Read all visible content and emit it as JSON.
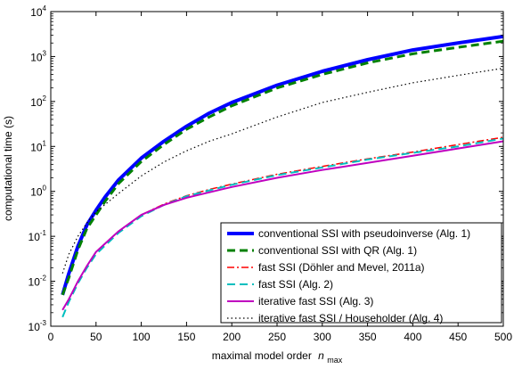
{
  "chart_data": {
    "type": "line",
    "xlabel": "maximal model order",
    "xlabel_var": "n",
    "xlabel_sub": "max",
    "ylabel": "computational time (s)",
    "xlim": [
      0,
      500
    ],
    "ylim_exponents": [
      -3,
      4
    ],
    "yscale": "log",
    "x_ticks": [
      "0",
      "50",
      "100",
      "150",
      "200",
      "250",
      "300",
      "350",
      "400",
      "450",
      "500"
    ],
    "y_ticks": [
      {
        "base": "10",
        "exp": "-3"
      },
      {
        "base": "10",
        "exp": "-2"
      },
      {
        "base": "10",
        "exp": "-1"
      },
      {
        "base": "10",
        "exp": "0"
      },
      {
        "base": "10",
        "exp": "1"
      },
      {
        "base": "10",
        "exp": "2"
      },
      {
        "base": "10",
        "exp": "3"
      },
      {
        "base": "10",
        "exp": "4"
      }
    ],
    "grid": false,
    "legend_position": "bottom-right",
    "series": [
      {
        "name": "conventional SSI with pseudoinverse (Alg. 1)",
        "color": "#0000ff",
        "style": "solid",
        "width": 4,
        "x": [
          13,
          20,
          30,
          40,
          50,
          60,
          75,
          100,
          125,
          150,
          175,
          200,
          250,
          300,
          350,
          400,
          450,
          500
        ],
        "y": [
          0.005,
          0.015,
          0.06,
          0.18,
          0.38,
          0.75,
          1.8,
          5.5,
          13,
          28,
          55,
          95,
          230,
          470,
          850,
          1400,
          2000,
          2800
        ]
      },
      {
        "name": "conventional SSI with QR (Alg. 1)",
        "color": "#008000",
        "style": "dashed",
        "width": 3,
        "x": [
          13,
          20,
          30,
          40,
          50,
          60,
          75,
          100,
          125,
          150,
          175,
          200,
          250,
          300,
          350,
          400,
          450,
          500
        ],
        "y": [
          0.005,
          0.012,
          0.05,
          0.15,
          0.3,
          0.6,
          1.5,
          4.6,
          11,
          24,
          45,
          80,
          200,
          400,
          720,
          1150,
          1600,
          2200
        ]
      },
      {
        "name": "fast SSI (Döhler and Mevel, 2011a)",
        "color": "#ff0000",
        "style": "dashdot",
        "width": 1.5,
        "x": [
          13,
          20,
          30,
          40,
          50,
          75,
          100,
          125,
          150,
          175,
          200,
          250,
          300,
          350,
          400,
          450,
          500
        ],
        "y": [
          0.0023,
          0.004,
          0.01,
          0.022,
          0.045,
          0.13,
          0.3,
          0.52,
          0.8,
          1.1,
          1.45,
          2.4,
          3.6,
          5.3,
          7.5,
          11,
          16
        ]
      },
      {
        "name": "fast SSI (Alg. 2)",
        "color": "#00bfbf",
        "style": "dashed",
        "width": 2,
        "x": [
          13,
          20,
          30,
          40,
          50,
          75,
          100,
          125,
          150,
          175,
          200,
          250,
          300,
          350,
          400,
          450,
          500
        ],
        "y": [
          0.0016,
          0.0035,
          0.009,
          0.02,
          0.04,
          0.12,
          0.28,
          0.5,
          0.78,
          1.05,
          1.4,
          2.3,
          3.4,
          5.1,
          7.2,
          10,
          15
        ]
      },
      {
        "name": "iterative fast SSI (Alg. 3)",
        "color": "#bf00bf",
        "style": "solid",
        "width": 2,
        "x": [
          13,
          20,
          30,
          40,
          50,
          75,
          100,
          125,
          150,
          175,
          200,
          250,
          300,
          350,
          400,
          450,
          500
        ],
        "y": [
          0.0023,
          0.004,
          0.01,
          0.022,
          0.045,
          0.13,
          0.3,
          0.5,
          0.72,
          0.95,
          1.25,
          2.0,
          3.0,
          4.3,
          6.2,
          9.0,
          13
        ]
      },
      {
        "name": "iterative fast SSI / Householder (Alg. 4)",
        "color": "#000000",
        "style": "dotted",
        "width": 1.2,
        "x": [
          13,
          20,
          30,
          40,
          50,
          75,
          100,
          125,
          150,
          175,
          200,
          250,
          300,
          350,
          400,
          450,
          500
        ],
        "y": [
          0.015,
          0.04,
          0.1,
          0.2,
          0.35,
          0.9,
          2.2,
          4.5,
          8,
          13,
          19,
          45,
          95,
          160,
          260,
          380,
          550
        ]
      }
    ]
  }
}
